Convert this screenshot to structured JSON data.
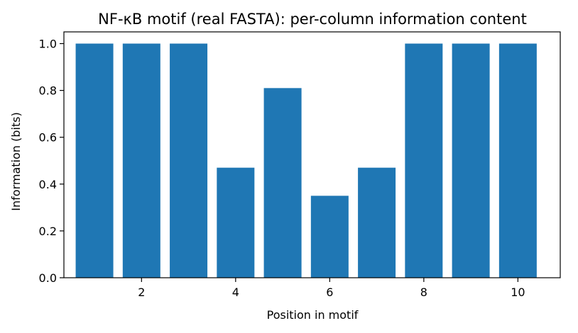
{
  "chart_data": {
    "type": "bar",
    "title": "NF-κB motif (real FASTA): per-column information content",
    "xlabel": "Position in motif",
    "ylabel": "Information (bits)",
    "x": [
      1,
      2,
      3,
      4,
      5,
      6,
      7,
      8,
      9,
      10
    ],
    "values": [
      1.0,
      1.0,
      1.0,
      0.47,
      0.81,
      0.35,
      0.47,
      1.0,
      1.0,
      1.0
    ],
    "xlim": [
      0.35,
      10.9
    ],
    "ylim": [
      0,
      1.05
    ],
    "xticks": [
      2,
      4,
      6,
      8,
      10
    ],
    "yticks": [
      0.0,
      0.2,
      0.4,
      0.6,
      0.8,
      1.0
    ],
    "ytick_labels": [
      "0.0",
      "0.2",
      "0.4",
      "0.6",
      "0.8",
      "1.0"
    ],
    "bar_color": "#1f77b4",
    "grid": false
  }
}
